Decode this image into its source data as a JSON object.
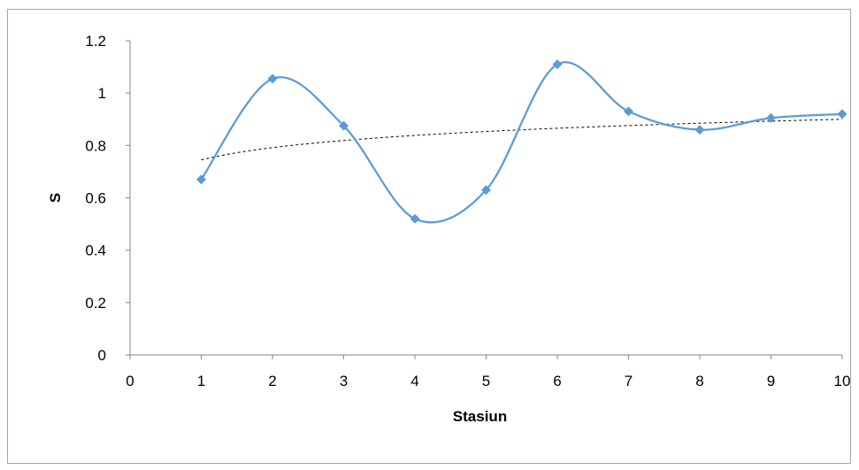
{
  "chart_data": {
    "type": "scatter",
    "title": "",
    "xlabel": "Stasiun",
    "ylabel": "S",
    "xlim": [
      0,
      10
    ],
    "ylim": [
      0,
      1.2
    ],
    "x_ticks": [
      "0",
      "1",
      "2",
      "3",
      "4",
      "5",
      "6",
      "7",
      "8",
      "9",
      "10"
    ],
    "y_ticks": [
      "0",
      "0.2",
      "0.4",
      "0.6",
      "0.8",
      "1",
      "1.2"
    ],
    "grid": false,
    "legend": "none",
    "series": [
      {
        "x": [
          1,
          2,
          3,
          4,
          5,
          6,
          7,
          8,
          9,
          10
        ],
        "y": [
          0.67,
          1.055,
          0.875,
          0.52,
          0.63,
          1.11,
          0.93,
          0.86,
          0.905,
          0.92
        ],
        "style": "smoothed-line-with-diamond-markers",
        "color": "#5b9bd5"
      }
    ],
    "trendline": {
      "type": "logarithmic",
      "style": "dashed",
      "color": "#000000",
      "x": [
        1,
        10
      ],
      "y": [
        0.745,
        0.9
      ]
    }
  }
}
